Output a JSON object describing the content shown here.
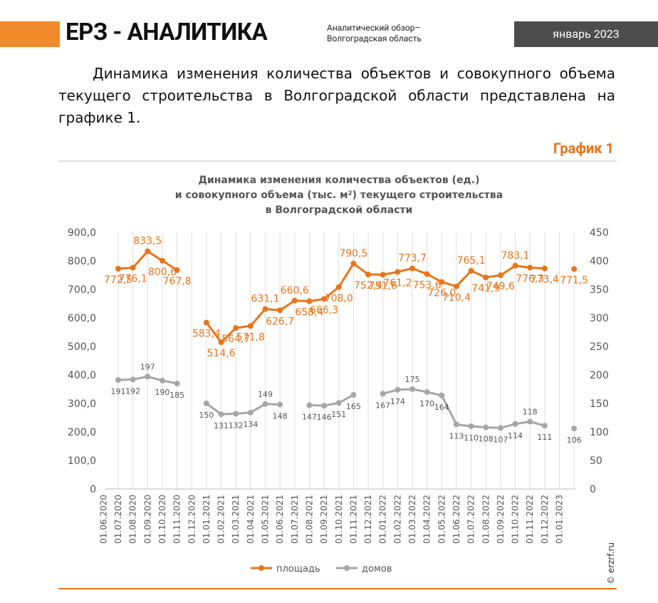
{
  "header": {
    "logo": "ЕРЗ - АНАЛИТИКА",
    "subtitle_lines": [
      "Аналитический обзор–",
      "Волгоградская область"
    ],
    "date": "январь 2023"
  },
  "paragraph": "Динамика изменения количества объектов и совокупного объема текущего строительства в Волгоградской области представлена на графике 1.",
  "figure_label": "График 1",
  "chart_data": {
    "type": "line",
    "title": [
      "Динамика изменения количества объектов (ед.)",
      "и совокупного объема (тыс. м²) текущего строительства",
      "в Волгоградской области"
    ],
    "categories": [
      "01.06.2020",
      "01.07.2020",
      "01.08.2020",
      "01.09.2020",
      "01.10.2020",
      "01.11.2020",
      "01.12.2020",
      "01.01.2021",
      "01.02.2021",
      "01.03.2021",
      "01.04.2021",
      "01.05.2021",
      "01.06.2021",
      "01.07.2021",
      "01.08.2021",
      "01.09.2021",
      "01.10.2021",
      "01.11.2021",
      "01.12.2021",
      "01.01.2022",
      "01.02.2022",
      "01.03.2022",
      "01.04.2022",
      "01.05.2022",
      "01.06.2022",
      "01.07.2022",
      "01.08.2022",
      "01.09.2022",
      "01.10.2022",
      "01.11.2022",
      "01.12.2022",
      "01.01.2023"
    ],
    "series": [
      {
        "name": "площадь",
        "color": "#e8751a",
        "values": [
          772.5,
          776.1,
          833.5,
          800.6,
          767.8,
          null,
          583.4,
          514.6,
          564.7,
          571.8,
          631.1,
          626.7,
          660.6,
          658.4,
          666.3,
          708.0,
          790.5,
          752.4,
          751.6,
          761.2,
          773.7,
          753.6,
          726.0,
          710.4,
          765.1,
          741.9,
          749.6,
          783.1,
          776.3,
          773.4,
          null,
          771.5
        ],
        "value_labels": [
          "772,5",
          "776,1",
          "833,5",
          "800,6",
          "767,8",
          null,
          "583,4",
          "514,6",
          "564,7",
          "571,8",
          "631,1",
          "626,7",
          "660,6",
          "658,4",
          "666,3",
          "708,0",
          "790,5",
          "752,4",
          "751,6",
          "761,2",
          "773,7",
          "753,6",
          "726,0",
          "710,4",
          "765,1",
          "741,9",
          "749,6",
          "783,1",
          "776,3",
          "773,4",
          null,
          "771,5"
        ]
      },
      {
        "name": "домов",
        "color": "#a6a6a6",
        "axis": "y2",
        "values": [
          191,
          192,
          197,
          190,
          185,
          null,
          150,
          131,
          132,
          134,
          149,
          148,
          null,
          147,
          146,
          151,
          165,
          null,
          167,
          174,
          175,
          170,
          164,
          113,
          110,
          108,
          107,
          114,
          118,
          111,
          null,
          106
        ]
      }
    ],
    "ylim": [
      0,
      900
    ],
    "yticks": [
      0,
      {
        "value": 100,
        "label": "100,0"
      },
      {
        "value": 200,
        "label": "200,0"
      },
      {
        "value": 300,
        "label": "300,0"
      },
      {
        "value": 400,
        "label": "400,0"
      },
      {
        "value": 500,
        "label": "500,0"
      },
      {
        "value": 600,
        "label": "600,0"
      },
      {
        "value": 700,
        "label": "700,0"
      },
      {
        "value": 800,
        "label": "800,0"
      },
      {
        "value": 900,
        "label": "900,0"
      }
    ],
    "y2lim": [
      0,
      450
    ],
    "y2ticks": [
      0,
      50,
      100,
      150,
      200,
      250,
      300,
      350,
      400,
      450
    ],
    "grid": true,
    "legend": "bottom"
  },
  "source": "© erzrf.ru"
}
